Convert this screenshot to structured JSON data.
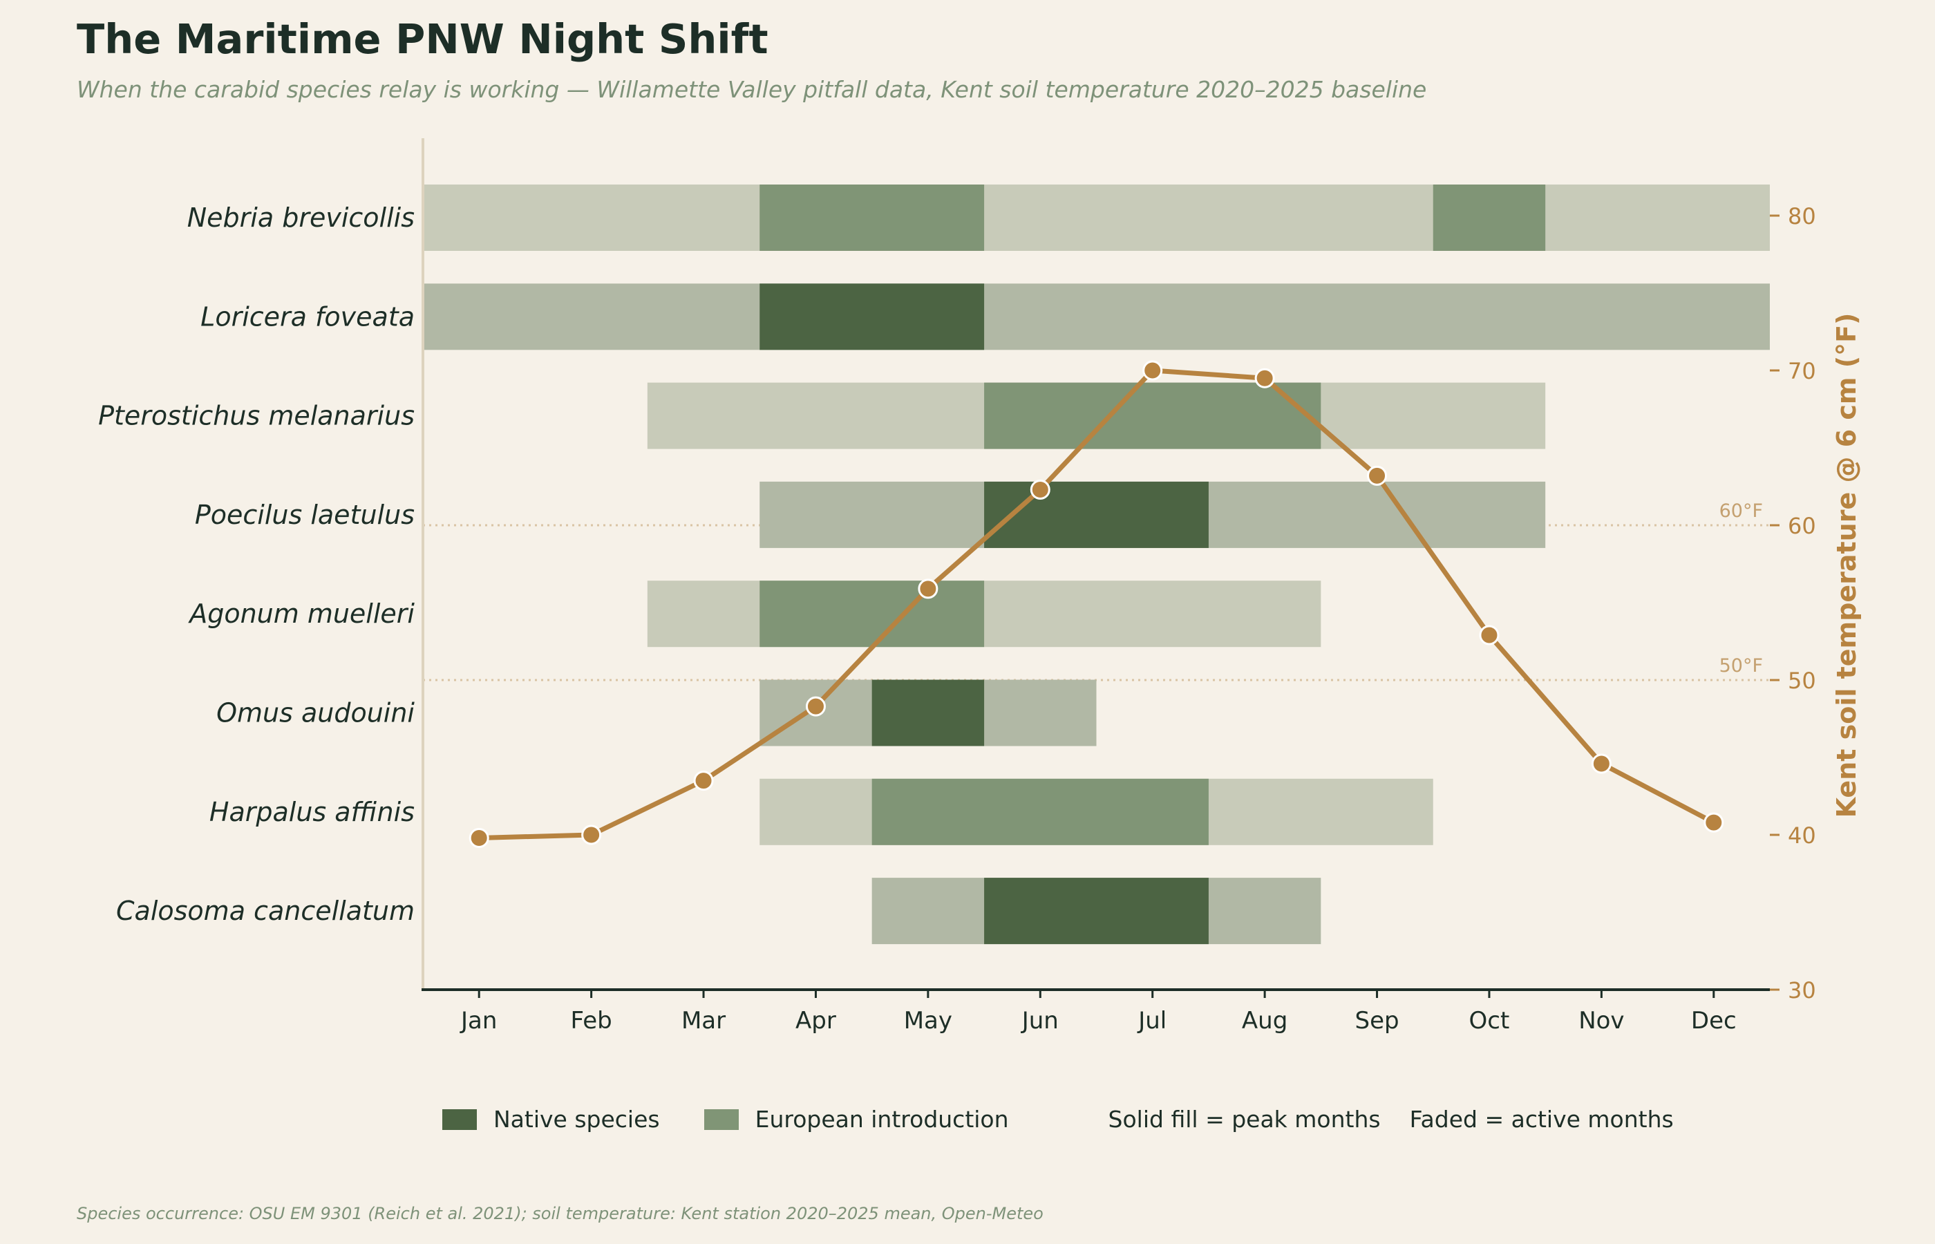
{
  "title": "The Maritime PNW Night Shift",
  "subtitle": "When the carabid species relay is working — Willamette Valley pitfall data, Kent soil temperature 2020–2025 baseline",
  "footnote": "Species occurrence: OSU EM 9301 (Reich et al. 2021); soil temperature: Kent station 2020–2025 mean, Open-Meteo",
  "legend": {
    "native_label": "Native species",
    "european_label": "European introduction",
    "note_solid": "Solid fill = peak months",
    "note_faded": "Faded = active months"
  },
  "colors": {
    "background": "#f6f1e8",
    "native_peak": "#4c6443",
    "native_active": "#b1b8a5",
    "european_peak": "#809576",
    "european_active": "#c8cbb9",
    "temperature_line": "#b78340"
  },
  "chart_data": {
    "type": "gantt-with-line",
    "months": [
      "Jan",
      "Feb",
      "Mar",
      "Apr",
      "May",
      "Jun",
      "Jul",
      "Aug",
      "Sep",
      "Oct",
      "Nov",
      "Dec"
    ],
    "species": [
      {
        "name": "Nebria brevicollis",
        "origin": "european",
        "active": [
          1,
          12
        ],
        "peak_ranges": [
          [
            4,
            5
          ],
          [
            10,
            10
          ]
        ]
      },
      {
        "name": "Loricera foveata",
        "origin": "native",
        "active": [
          1,
          12
        ],
        "peak_ranges": [
          [
            4,
            5
          ]
        ]
      },
      {
        "name": "Pterostichus melanarius",
        "origin": "european",
        "active": [
          3,
          10
        ],
        "peak_ranges": [
          [
            6,
            8
          ]
        ]
      },
      {
        "name": "Poecilus laetulus",
        "origin": "native",
        "active": [
          4,
          10
        ],
        "peak_ranges": [
          [
            6,
            7
          ]
        ]
      },
      {
        "name": "Agonum muelleri",
        "origin": "european",
        "active": [
          3,
          8
        ],
        "peak_ranges": [
          [
            4,
            5
          ]
        ]
      },
      {
        "name": "Omus audouini",
        "origin": "native",
        "active": [
          4,
          6
        ],
        "peak_ranges": [
          [
            5,
            5
          ]
        ]
      },
      {
        "name": "Harpalus affinis",
        "origin": "european",
        "active": [
          4,
          9
        ],
        "peak_ranges": [
          [
            5,
            7
          ]
        ]
      },
      {
        "name": "Calosoma cancellatum",
        "origin": "native",
        "active": [
          5,
          8
        ],
        "peak_ranges": [
          [
            6,
            7
          ]
        ]
      }
    ],
    "soil_temperature": {
      "ylabel": "Kent soil temperature @ 6 cm (°F)",
      "ylim": [
        30,
        83
      ],
      "ticks": [
        30,
        40,
        50,
        60,
        70,
        80
      ],
      "values": [
        39.8,
        40.0,
        43.5,
        48.3,
        55.9,
        62.3,
        70.0,
        69.5,
        63.2,
        52.9,
        44.6,
        40.8
      ],
      "reference_lines": [
        {
          "value": 60,
          "label": "60°F"
        },
        {
          "value": 50,
          "label": "50°F"
        }
      ]
    }
  }
}
